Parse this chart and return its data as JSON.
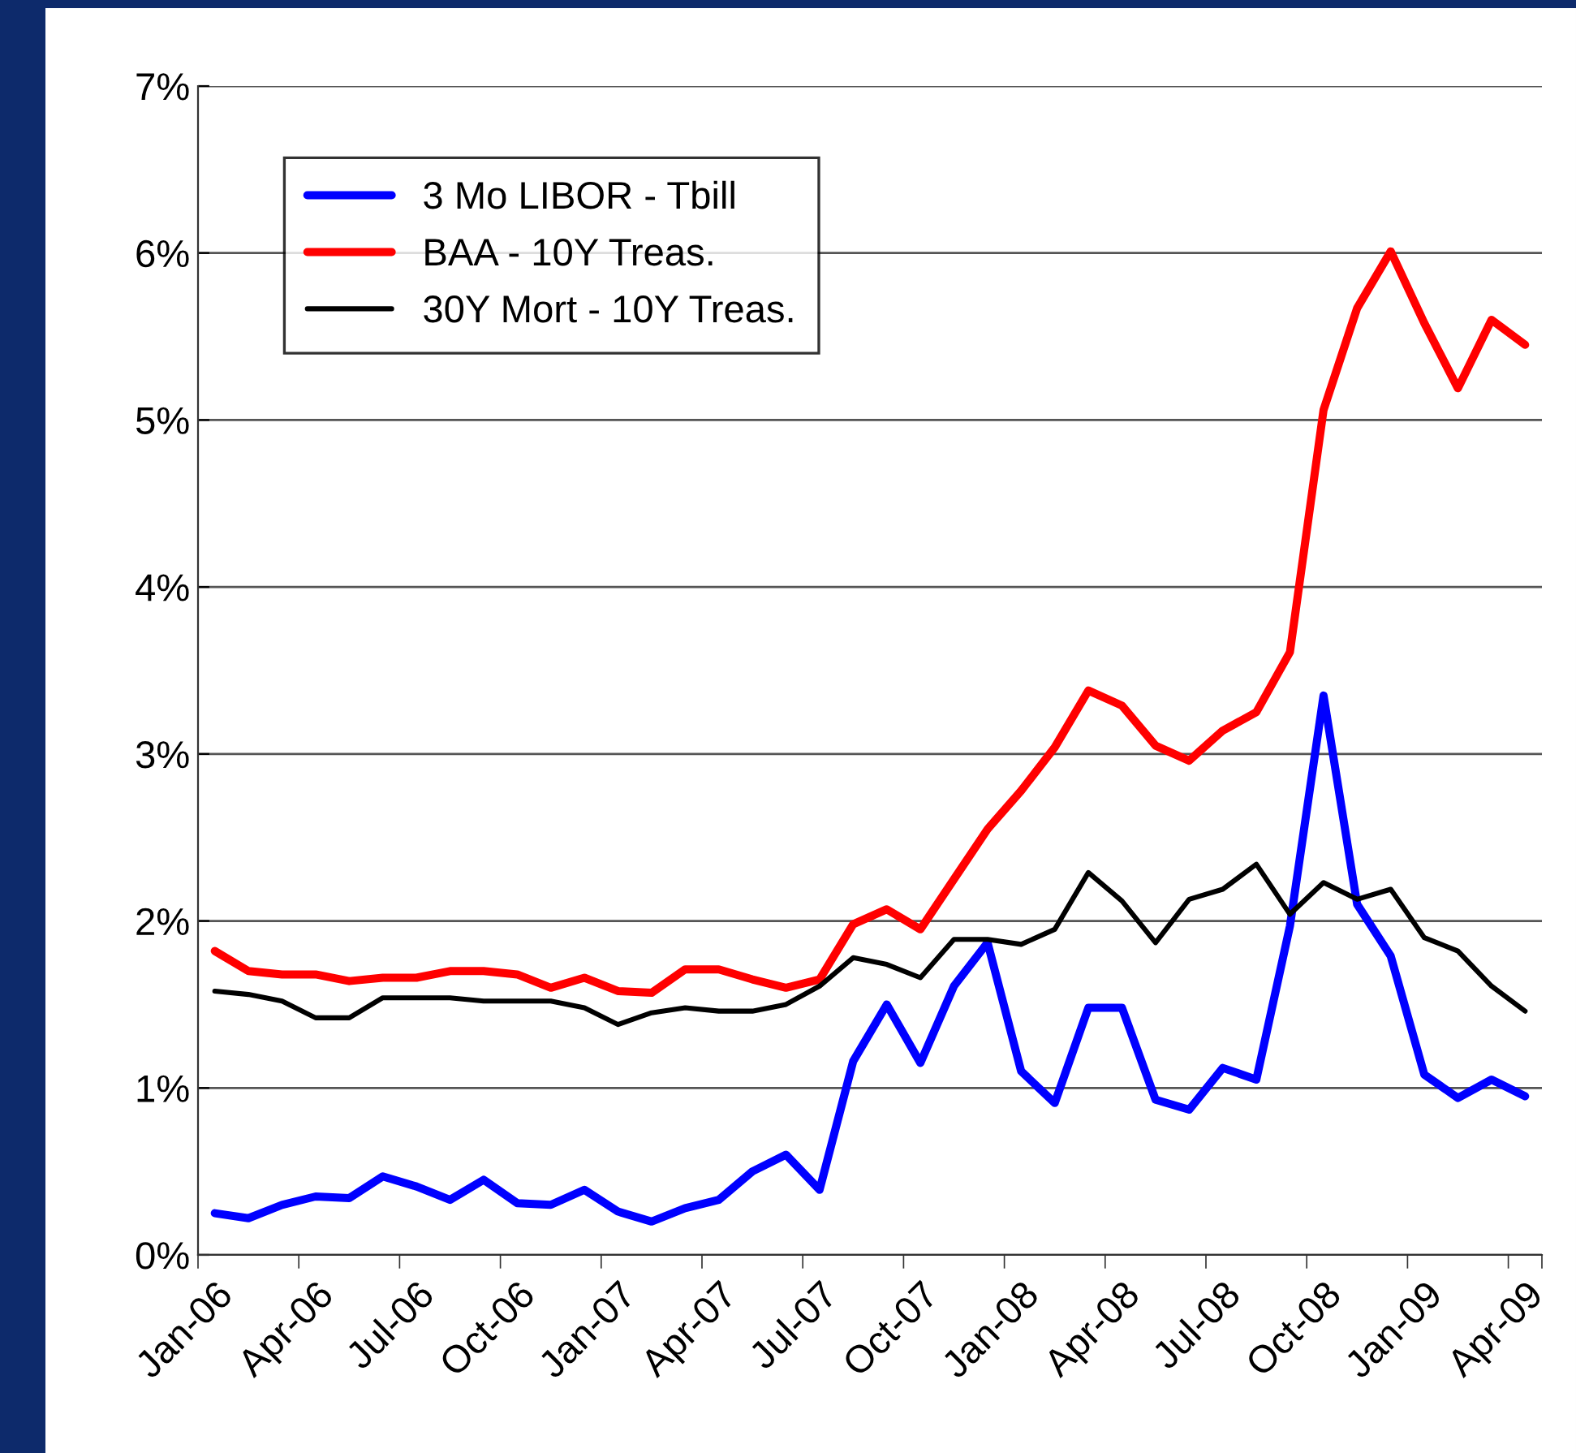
{
  "chart_data": {
    "type": "line",
    "categories": [
      "Jan-06",
      null,
      null,
      "Apr-06",
      null,
      null,
      "Jul-06",
      null,
      null,
      "Oct-06",
      null,
      null,
      "Jan-07",
      null,
      null,
      "Apr-07",
      null,
      null,
      "Jul-07",
      null,
      null,
      "Oct-07",
      null,
      null,
      "Jan-08",
      null,
      null,
      "Apr-08",
      null,
      null,
      "Jul-08",
      null,
      null,
      "Oct-08",
      null,
      null,
      "Jan-09",
      null,
      null,
      "Apr-09"
    ],
    "series": [
      {
        "name": "3 Mo LIBOR - Tbill",
        "color": "#0000ff",
        "values": [
          0.25,
          0.22,
          0.3,
          0.35,
          0.34,
          0.47,
          0.41,
          0.33,
          0.45,
          0.31,
          0.3,
          0.39,
          0.26,
          0.2,
          0.28,
          0.33,
          0.5,
          0.6,
          0.39,
          1.16,
          1.5,
          1.15,
          1.61,
          1.87,
          1.1,
          0.91,
          1.48,
          1.48,
          0.93,
          0.87,
          1.12,
          1.05,
          1.97,
          3.35,
          2.1,
          1.79,
          1.08,
          0.94,
          1.05,
          0.95
        ]
      },
      {
        "name": "BAA - 10Y Treas.",
        "color": "#ff0000",
        "values": [
          1.82,
          1.7,
          1.68,
          1.68,
          1.64,
          1.66,
          1.66,
          1.7,
          1.7,
          1.68,
          1.6,
          1.66,
          1.58,
          1.57,
          1.71,
          1.71,
          1.65,
          1.6,
          1.65,
          1.98,
          2.07,
          1.95,
          2.25,
          2.55,
          2.78,
          3.04,
          3.38,
          3.29,
          3.05,
          2.96,
          3.14,
          3.25,
          3.61,
          5.06,
          5.67,
          6.01,
          5.58,
          5.19,
          5.6,
          5.45
        ]
      },
      {
        "name": "30Y Mort - 10Y Treas.",
        "color": "#000000",
        "values": [
          1.58,
          1.56,
          1.52,
          1.42,
          1.42,
          1.54,
          1.54,
          1.54,
          1.52,
          1.52,
          1.52,
          1.48,
          1.38,
          1.45,
          1.48,
          1.46,
          1.46,
          1.5,
          1.61,
          1.78,
          1.74,
          1.66,
          1.89,
          1.89,
          1.86,
          1.95,
          2.29,
          2.12,
          1.87,
          2.13,
          2.19,
          2.34,
          2.04,
          2.23,
          2.13,
          2.19,
          1.9,
          1.82,
          1.61,
          1.46
        ]
      }
    ],
    "ylim": [
      0,
      7
    ],
    "yticks": [
      {
        "value": 0,
        "label": "0%"
      },
      {
        "value": 1,
        "label": "1%"
      },
      {
        "value": 2,
        "label": "2%"
      },
      {
        "value": 3,
        "label": "3%"
      },
      {
        "value": 4,
        "label": "4%"
      },
      {
        "value": 5,
        "label": "5%"
      },
      {
        "value": 6,
        "label": "6%"
      },
      {
        "value": 7,
        "label": "7%"
      }
    ],
    "grid": "y",
    "legend": "top left",
    "marker": "none",
    "line_style": "solid"
  }
}
